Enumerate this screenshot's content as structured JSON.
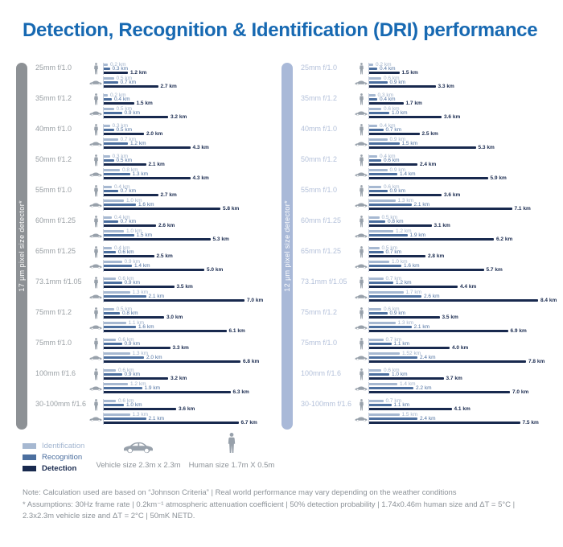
{
  "title": "Detection, Recognition & Identification (DRI) performance",
  "legend": {
    "series": [
      {
        "label": "Identification",
        "color": "#a6b8d1"
      },
      {
        "label": "Recognition",
        "color": "#4c6f9f"
      },
      {
        "label": "Detection",
        "color": "#18294e"
      }
    ],
    "vehicle_key": "Vehicle size 2.3m x 2.3m",
    "human_key": "Human size 1.7m X 0.5m"
  },
  "footer": {
    "note": "Note: Calculation used are based on “Johnson Criteria” | Real world performance may vary depending on the weather conditions",
    "assumptions": "* Assumptions: 30Hz frame rate | 0.2km⁻¹ atmospheric attenuation coefficient | 50% detection probability | 1.74x0.46m human size and ΔT = 5°C | 2.3x2.3m vehicle size and ΔT = 2°C | 50mK NETD."
  },
  "chart_data": {
    "type": "bar",
    "orientation": "horizontal",
    "unit": "km",
    "series_names": [
      "Identification",
      "Recognition",
      "Detection"
    ],
    "row_kinds": [
      "human",
      "vehicle"
    ],
    "columns": [
      {
        "detector": "17 μm pixel size detector*",
        "groups": [
          {
            "lens": "25mm f/1.0",
            "human": [
              0.2,
              0.3,
              1.2
            ],
            "vehicle": [
              0.5,
              0.7,
              2.7
            ]
          },
          {
            "lens": "35mm f/1.2",
            "human": [
              0.2,
              0.4,
              1.5
            ],
            "vehicle": [
              0.5,
              0.9,
              3.2
            ]
          },
          {
            "lens": "40mm f/1.0",
            "human": [
              0.3,
              0.5,
              2.0
            ],
            "vehicle": [
              0.7,
              1.2,
              4.3
            ]
          },
          {
            "lens": "50mm f/1.2",
            "human": [
              0.3,
              0.5,
              2.1
            ],
            "vehicle": [
              0.8,
              1.3,
              4.3
            ]
          },
          {
            "lens": "55mm f/1.0",
            "human": [
              0.4,
              0.7,
              2.7
            ],
            "vehicle": [
              1.0,
              1.6,
              5.8
            ]
          },
          {
            "lens": "60mm f/1.25",
            "human": [
              0.4,
              0.7,
              2.6
            ],
            "vehicle": [
              1.0,
              1.5,
              5.3
            ]
          },
          {
            "lens": "65mm f/1.25",
            "human": [
              0.4,
              0.6,
              2.5
            ],
            "vehicle": [
              0.9,
              1.4,
              5.0
            ]
          },
          {
            "lens": "73.1mm f/1.05",
            "human": [
              0.6,
              0.9,
              3.5
            ],
            "vehicle": [
              1.3,
              2.1,
              7.0
            ]
          },
          {
            "lens": "75mm f/1.2",
            "human": [
              0.5,
              0.8,
              3.0
            ],
            "vehicle": [
              1.1,
              1.6,
              6.1
            ]
          },
          {
            "lens": "75mm f/1.0",
            "human": [
              0.6,
              0.9,
              3.3
            ],
            "vehicle": [
              1.3,
              2.0,
              6.8
            ]
          },
          {
            "lens": "100mm f/1.6",
            "human": [
              0.6,
              0.9,
              3.2
            ],
            "vehicle": [
              1.2,
              1.9,
              6.3
            ]
          },
          {
            "lens": "30-100mm f/1.6",
            "human": [
              0.6,
              1.0,
              3.6
            ],
            "vehicle": [
              1.3,
              2.1,
              6.7
            ]
          }
        ]
      },
      {
        "detector": "12 μm pixel size detector*",
        "groups": [
          {
            "lens": "25mm f/1.0",
            "human": [
              0.2,
              0.4,
              1.5
            ],
            "vehicle": [
              0.6,
              0.9,
              3.3
            ]
          },
          {
            "lens": "35mm f/1.2",
            "human": [
              0.3,
              0.4,
              1.7
            ],
            "vehicle": [
              0.6,
              1.0,
              3.6
            ]
          },
          {
            "lens": "40mm f/1.0",
            "human": [
              0.4,
              0.7,
              2.5
            ],
            "vehicle": [
              0.9,
              1.5,
              5.3
            ]
          },
          {
            "lens": "50mm f/1.2",
            "human": [
              0.4,
              0.6,
              2.4
            ],
            "vehicle": [
              0.9,
              1.4,
              5.9
            ]
          },
          {
            "lens": "55mm f/1.0",
            "human": [
              0.6,
              0.9,
              3.6
            ],
            "vehicle": [
              1.3,
              2.1,
              7.1
            ]
          },
          {
            "lens": "60mm f/1.25",
            "human": [
              0.5,
              0.8,
              3.1
            ],
            "vehicle": [
              1.2,
              1.9,
              6.2
            ]
          },
          {
            "lens": "65mm f/1.25",
            "human": [
              0.5,
              0.7,
              2.8
            ],
            "vehicle": [
              1.0,
              1.6,
              5.7
            ]
          },
          {
            "lens": "73.1mm f/1.05",
            "human": [
              0.7,
              1.2,
              4.4
            ],
            "vehicle": [
              1.7,
              2.6,
              8.4
            ]
          },
          {
            "lens": "75mm f/1.2",
            "human": [
              0.6,
              0.9,
              3.5
            ],
            "vehicle": [
              1.3,
              2.1,
              6.9
            ]
          },
          {
            "lens": "75mm f/1.0",
            "human": [
              0.7,
              1.1,
              4.0
            ],
            "vehicle": [
              1.52,
              2.4,
              7.8
            ]
          },
          {
            "lens": "100mm f/1.6",
            "human": [
              0.6,
              1.0,
              3.7
            ],
            "vehicle": [
              1.4,
              2.2,
              7.0
            ]
          },
          {
            "lens": "30-100mm f/1.6",
            "human": [
              0.7,
              1.1,
              4.1
            ],
            "vehicle": [
              1.5,
              2.4,
              7.5
            ]
          }
        ]
      }
    ]
  }
}
